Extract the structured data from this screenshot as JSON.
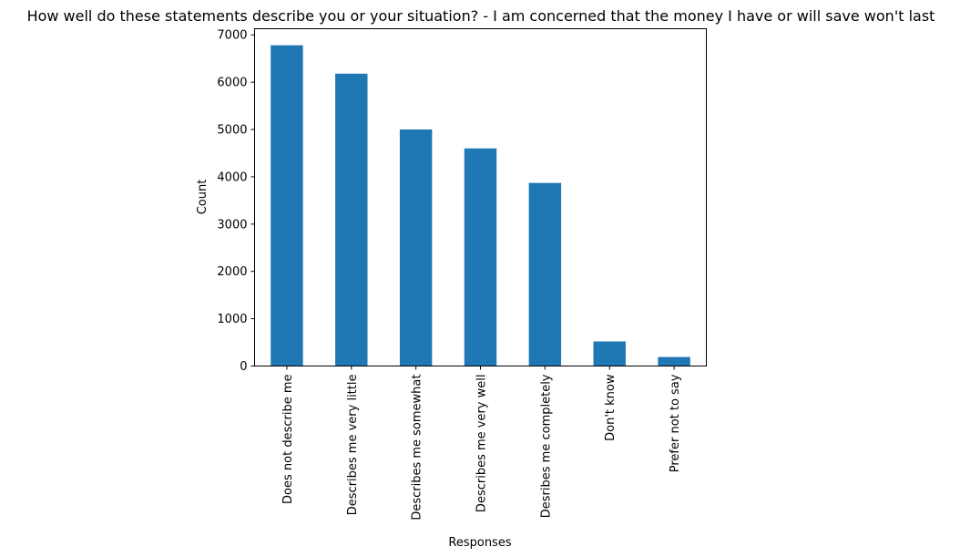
{
  "colors": {
    "bar": "#1f77b4"
  },
  "chart_data": {
    "type": "bar",
    "title": "How well do these statements describe you or your situation? - I am concerned that the money I have or will save won't last",
    "xlabel": "Responses",
    "ylabel": "Count",
    "categories": [
      "Does not describe me",
      "Describes me very little",
      "Describes me somewhat",
      "Describes me very well",
      "Desribes me completely",
      "Don't know",
      "Prefer not to say"
    ],
    "values": [
      6780,
      6180,
      5000,
      4600,
      3870,
      520,
      190
    ],
    "ylim": [
      0,
      7130
    ],
    "yticks": [
      0,
      1000,
      2000,
      3000,
      4000,
      5000,
      6000,
      7000
    ],
    "grid": false,
    "legend": "none"
  }
}
